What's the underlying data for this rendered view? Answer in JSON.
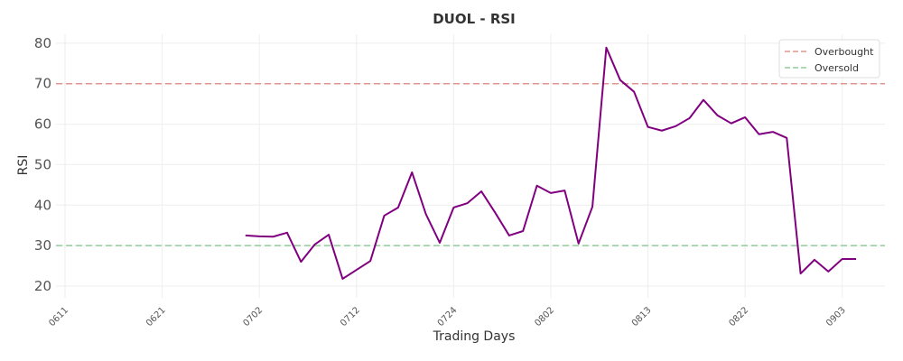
{
  "chart_data": {
    "type": "line",
    "title": "DUOL - RSI",
    "x_label": "Trading Days",
    "y_label": "RSI",
    "categories": [
      "0611",
      null,
      null,
      null,
      null,
      null,
      null,
      "0621",
      null,
      null,
      null,
      null,
      null,
      null,
      "0702",
      null,
      null,
      null,
      null,
      null,
      null,
      "0712",
      null,
      null,
      null,
      null,
      null,
      null,
      "0724",
      null,
      null,
      null,
      null,
      null,
      null,
      "0802",
      null,
      null,
      null,
      null,
      null,
      null,
      "0813",
      null,
      null,
      null,
      null,
      null,
      null,
      "0822",
      null,
      null,
      null,
      null,
      null,
      null,
      "0903",
      null
    ],
    "series": [
      {
        "name": "RSI",
        "color": "#800080",
        "values": [
          null,
          null,
          null,
          null,
          null,
          null,
          null,
          null,
          null,
          null,
          null,
          null,
          null,
          32.5,
          32.3,
          32.2,
          33.2,
          26.0,
          30.3,
          32.7,
          21.8,
          24.0,
          26.2,
          37.4,
          39.4,
          48.1,
          37.8,
          30.7,
          39.4,
          40.5,
          43.4,
          38.1,
          32.5,
          33.6,
          44.8,
          43.0,
          43.6,
          30.5,
          39.6,
          78.9,
          70.9,
          68.0,
          59.3,
          58.4,
          59.5,
          61.5,
          66.0,
          62.2,
          60.2,
          61.7,
          57.5,
          58.1,
          56.6,
          23.1,
          26.5,
          23.6,
          26.7,
          26.7
        ]
      }
    ],
    "hlines": [
      {
        "name": "Overbought",
        "value": 70,
        "color": "#e0958f"
      },
      {
        "name": "Oversold",
        "value": 30,
        "color": "#90cc9b"
      }
    ],
    "ylim": [
      17.1,
      82.2
    ],
    "yticks": [
      20,
      30,
      40,
      50,
      60,
      70,
      80
    ],
    "grid": true,
    "legend": "upper right"
  }
}
